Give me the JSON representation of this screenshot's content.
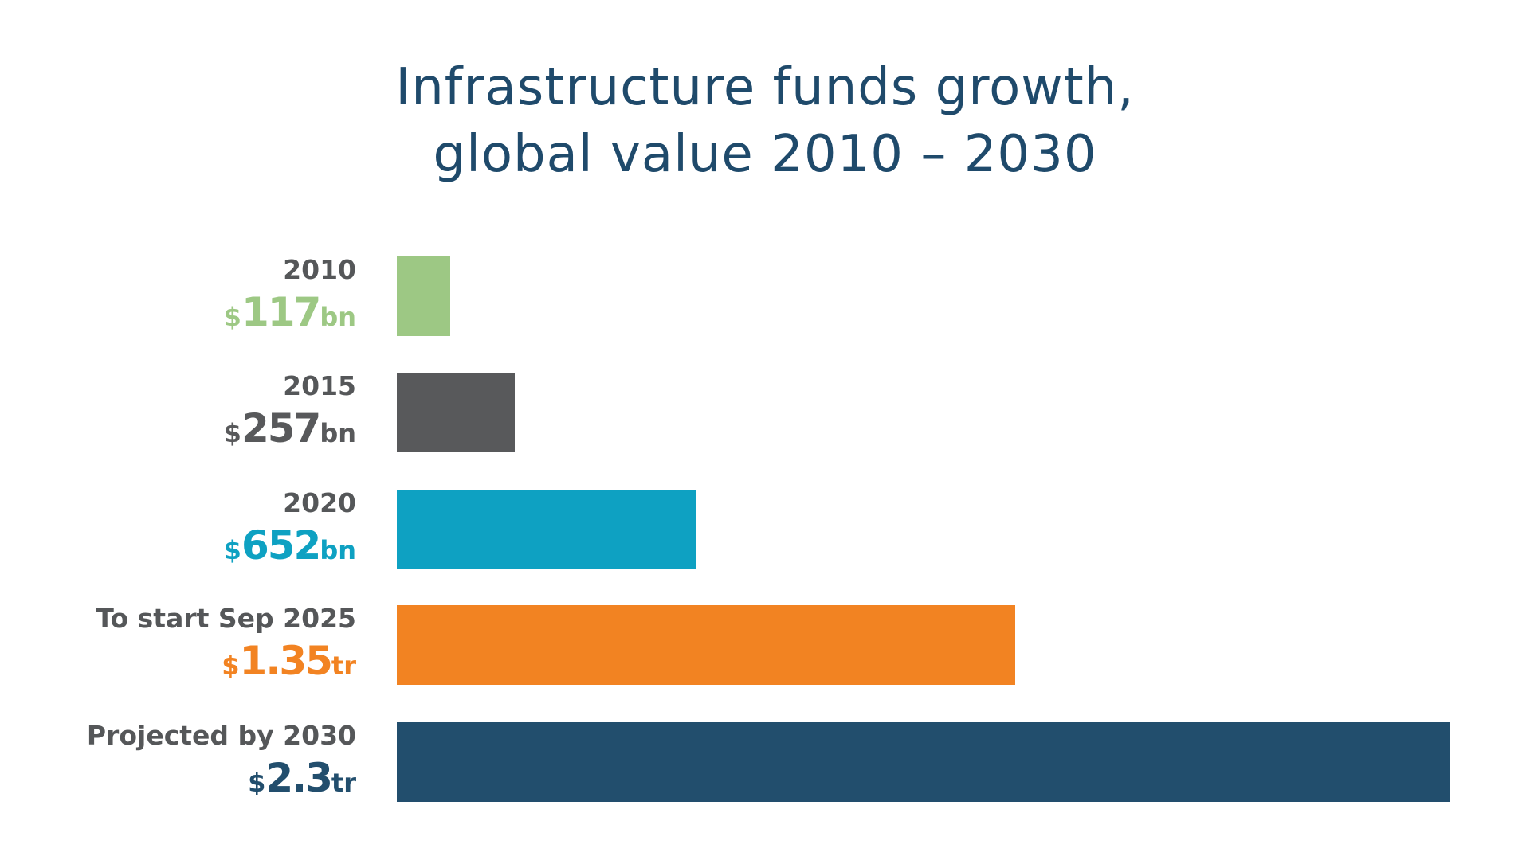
{
  "chart_data": {
    "type": "bar",
    "orientation": "horizontal",
    "title": [
      "Infrastructure funds growth,",
      "global value 2010 – 2030"
    ],
    "unit": "USD",
    "categories": [
      "2010",
      "2015",
      "2020",
      "To start Sep 2025",
      "Projected by 2030"
    ],
    "values_bn": [
      117,
      257,
      652,
      1350,
      2300
    ],
    "value_labels": [
      {
        "currency": "$",
        "number": "117",
        "suffix": "bn"
      },
      {
        "currency": "$",
        "number": "257",
        "suffix": "bn"
      },
      {
        "currency": "$",
        "number": "652",
        "suffix": "bn"
      },
      {
        "currency": "$",
        "number": "1.35",
        "suffix": "tr"
      },
      {
        "currency": "$",
        "number": "2.3",
        "suffix": "tr"
      }
    ],
    "colors": [
      "#9dc884",
      "#58595b",
      "#0ea1c2",
      "#f28322",
      "#224e6d"
    ],
    "xlim": [
      0,
      2300
    ],
    "grid": false,
    "axes_visible": false
  }
}
